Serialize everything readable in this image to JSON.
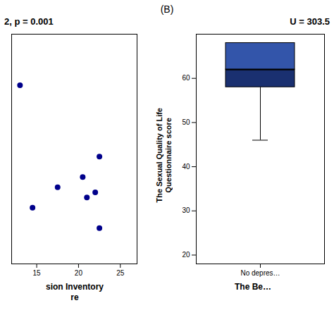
{
  "chart_data": [
    {
      "type": "scatter",
      "title": "2, p = 0.001",
      "xlabel": "sion Inventory\nre",
      "annotations": [
        "(B)"
      ],
      "x": [
        13.0,
        14.5,
        17.5,
        20.5,
        21.0,
        22.0,
        22.5,
        22.5
      ],
      "values": [
        65,
        41,
        45,
        47,
        43,
        44,
        37,
        51
      ],
      "color": "#00008B",
      "xlim": [
        12,
        27
      ],
      "xticks": [
        15,
        20,
        25
      ],
      "ylim": [
        30,
        75
      ],
      "yticks": [],
      "tick_labels": "x"
    },
    {
      "type": "box",
      "title": "U = 303.5",
      "xlabel": "The Be…",
      "ylabel": "The Sexual Quality of Life\nQuestionnaire score",
      "categories": [
        "No depres…"
      ],
      "q1": 58,
      "median": 62,
      "q3": 68,
      "whisker_min": 46,
      "colors": [
        "#1a3070",
        "#3355AA"
      ],
      "ylim": [
        18,
        70
      ],
      "yticks": [
        20,
        30,
        40,
        50,
        60
      ]
    }
  ]
}
